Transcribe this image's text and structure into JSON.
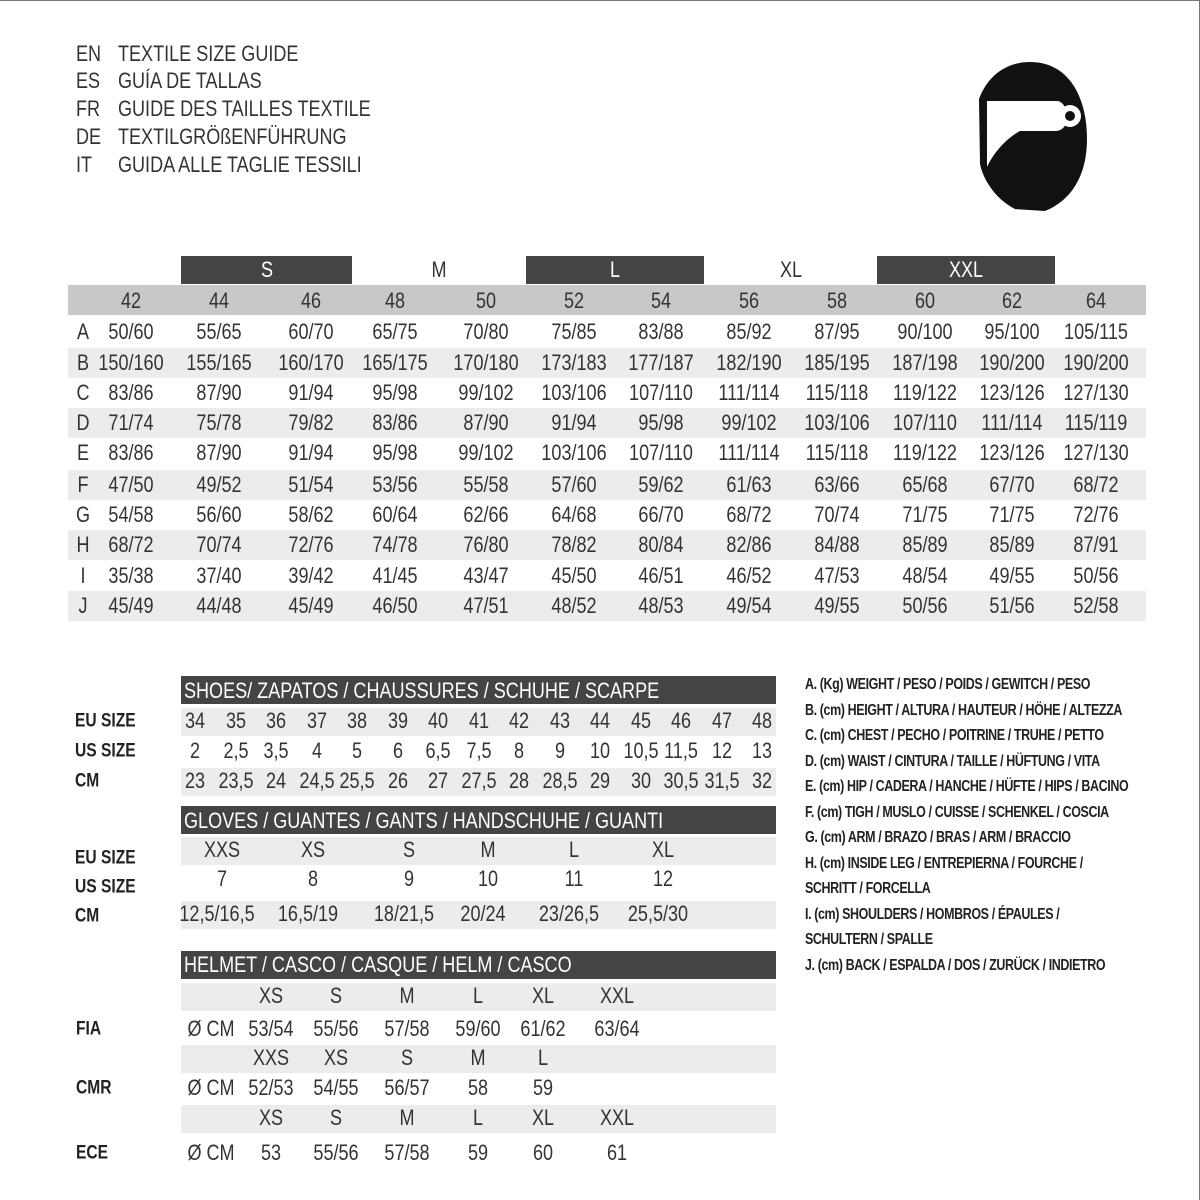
{
  "title_lines": [
    {
      "lang": "EN",
      "text": "TEXTILE SIZE GUIDE"
    },
    {
      "lang": "ES",
      "text": "GUÍA DE TALLAS"
    },
    {
      "lang": "FR",
      "text": "GUIDE DES TAILLES TEXTILE"
    },
    {
      "lang": "DE",
      "text": "TEXTILGRÖßENFÜHRUNG"
    },
    {
      "lang": "IT",
      "text": "GUIDA ALLE TAGLIE TESSILI"
    }
  ],
  "logo_icon": "helmet-icon",
  "colors": {
    "dark": "#444444",
    "band": "#c8c8c8",
    "stripe": "#ececec"
  },
  "textile": {
    "size_groups": [
      {
        "label": "S",
        "highlight": true
      },
      {
        "label": "M",
        "highlight": false
      },
      {
        "label": "L",
        "highlight": true
      },
      {
        "label": "XL",
        "highlight": false
      },
      {
        "label": "XXL",
        "highlight": true
      }
    ],
    "sizes": [
      "42",
      "44",
      "46",
      "48",
      "50",
      "52",
      "54",
      "56",
      "58",
      "60",
      "62",
      "64"
    ],
    "rows": [
      {
        "key": "A",
        "values": [
          "50/60",
          "55/65",
          "60/70",
          "65/75",
          "70/80",
          "75/85",
          "83/88",
          "85/92",
          "87/95",
          "90/100",
          "95/100",
          "105/115"
        ]
      },
      {
        "key": "B",
        "values": [
          "150/160",
          "155/165",
          "160/170",
          "165/175",
          "170/180",
          "173/183",
          "177/187",
          "182/190",
          "185/195",
          "187/198",
          "190/200",
          "190/200"
        ]
      },
      {
        "key": "C",
        "values": [
          "83/86",
          "87/90",
          "91/94",
          "95/98",
          "99/102",
          "103/106",
          "107/110",
          "111/114",
          "115/118",
          "119/122",
          "123/126",
          "127/130"
        ]
      },
      {
        "key": "D",
        "values": [
          "71/74",
          "75/78",
          "79/82",
          "83/86",
          "87/90",
          "91/94",
          "95/98",
          "99/102",
          "103/106",
          "107/110",
          "111/114",
          "115/119"
        ]
      },
      {
        "key": "E",
        "values": [
          "83/86",
          "87/90",
          "91/94",
          "95/98",
          "99/102",
          "103/106",
          "107/110",
          "111/114",
          "115/118",
          "119/122",
          "123/126",
          "127/130"
        ]
      },
      {
        "key": "F",
        "values": [
          "47/50",
          "49/52",
          "51/54",
          "53/56",
          "55/58",
          "57/60",
          "59/62",
          "61/63",
          "63/66",
          "65/68",
          "67/70",
          "68/72"
        ]
      },
      {
        "key": "G",
        "values": [
          "54/58",
          "56/60",
          "58/62",
          "60/64",
          "62/66",
          "64/68",
          "66/70",
          "68/72",
          "70/74",
          "71/75",
          "71/75",
          "72/76"
        ]
      },
      {
        "key": "H",
        "values": [
          "68/72",
          "70/74",
          "72/76",
          "74/78",
          "76/80",
          "78/82",
          "80/84",
          "82/86",
          "84/88",
          "85/89",
          "85/89",
          "87/91"
        ]
      },
      {
        "key": "I",
        "values": [
          "35/38",
          "37/40",
          "39/42",
          "41/45",
          "43/47",
          "45/50",
          "46/51",
          "46/52",
          "47/53",
          "48/54",
          "49/55",
          "50/56"
        ]
      },
      {
        "key": "J",
        "values": [
          "45/49",
          "44/48",
          "45/49",
          "46/50",
          "47/51",
          "48/52",
          "48/53",
          "49/54",
          "49/55",
          "50/56",
          "51/56",
          "52/58"
        ]
      }
    ]
  },
  "shoes": {
    "title": "SHOES/ ZAPATOS / CHAUSSURES / SCHUHE / SCARPE",
    "rows": [
      {
        "label": "EU SIZE",
        "values": [
          "34",
          "35",
          "36",
          "37",
          "38",
          "39",
          "40",
          "41",
          "42",
          "43",
          "44",
          "45",
          "46",
          "47",
          "48"
        ]
      },
      {
        "label": "US SIZE",
        "values": [
          "2",
          "2,5",
          "3,5",
          "4",
          "5",
          "6",
          "6,5",
          "7,5",
          "8",
          "9",
          "10",
          "10,5",
          "11,5",
          "12",
          "13"
        ]
      },
      {
        "label": "CM",
        "values": [
          "23",
          "23,5",
          "24",
          "24,5",
          "25,5",
          "26",
          "27",
          "27,5",
          "28",
          "28,5",
          "29",
          "30",
          "30,5",
          "31,5",
          "32"
        ]
      }
    ]
  },
  "gloves": {
    "title": "GLOVES / GUANTES / GANTS / HANDSCHUHE / GUANTI",
    "sizes": [
      "XXS",
      "XS",
      "S",
      "M",
      "L",
      "XL"
    ],
    "labels": [
      "EU SIZE",
      "US SIZE",
      "CM"
    ],
    "us": [
      "7",
      "8",
      "9",
      "10",
      "11",
      "12"
    ],
    "cm": [
      "12,5/16,5",
      "16,5/19",
      "18/21,5",
      "20/24",
      "23/26,5",
      "25,5/30"
    ]
  },
  "helmet": {
    "title": "HELMET / CASCO / CASQUE / HELM / CASCO",
    "unit": "Ø CM",
    "standards": [
      {
        "label": "FIA",
        "sizes": [
          "XS",
          "S",
          "M",
          "L",
          "XL",
          "XXL"
        ],
        "values": [
          "53/54",
          "55/56",
          "57/58",
          "59/60",
          "61/62",
          "63/64"
        ]
      },
      {
        "label": "CMR",
        "sizes": [
          "XXS",
          "XS",
          "S",
          "M",
          "L",
          ""
        ],
        "values": [
          "52/53",
          "54/55",
          "56/57",
          "58",
          "59",
          ""
        ]
      },
      {
        "label": "ECE",
        "sizes": [
          "XS",
          "S",
          "M",
          "L",
          "XL",
          "XXL"
        ],
        "values": [
          "53",
          "55/56",
          "57/58",
          "59",
          "60",
          "61"
        ]
      }
    ]
  },
  "legend": [
    "A. (Kg) WEIGHT / PESO / POIDS / GEWITCH / PESO",
    "B. (cm) HEIGHT / ALTURA / HAUTEUR / HÖHE / ALTEZZA",
    "C. (cm) CHEST / PECHO / POITRINE / TRUHE / PETTO",
    "D. (cm) WAIST / CINTURA / TAILLE / HÜFTUNG / VITA",
    "E. (cm) HIP / CADERA / HANCHE / HÜFTE / HIPS /  BACINO",
    "F.  (cm) TIGH / MUSLO / CUISSE / SCHENKEL / COSCIA",
    "G. (cm) ARM  / BRAZO / BRAS / ARM / BRACCIO",
    "H. (cm) INSIDE LEG / ENTREPIERNA / FOURCHE /",
    "SCHRITT / FORCELLA",
    "I.  (cm) SHOULDERS / HOMBROS / ÉPAULES /",
    "SCHULTERN / SPALLE",
    "J. (cm) BACK / ESPALDA / DOS / ZURÜCK / INDIETRO"
  ]
}
